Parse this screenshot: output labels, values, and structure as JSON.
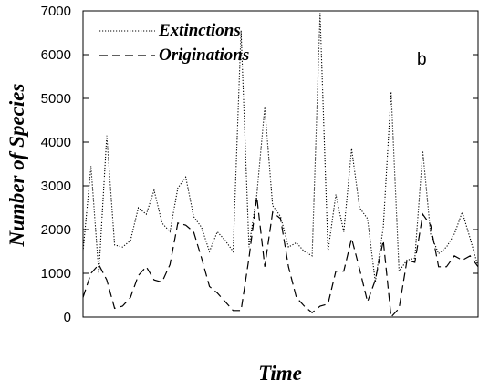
{
  "chart_data": {
    "type": "line",
    "panel_label": "b",
    "xlabel": "Time",
    "ylabel": "Number of Species",
    "ylim": [
      0,
      7000
    ],
    "yticks": [
      0,
      1000,
      2000,
      3000,
      4000,
      5000,
      6000,
      7000
    ],
    "xticks_labeled": false,
    "legend_position": "top-left",
    "series": [
      {
        "name": "Extinctions",
        "style": "dotted",
        "x": [
          0,
          1,
          2,
          3,
          4,
          5,
          6,
          7,
          8,
          9,
          10,
          11,
          12,
          13,
          14,
          15,
          16,
          17,
          18,
          19,
          20,
          21,
          22,
          23,
          24,
          25,
          26,
          27,
          28,
          29,
          30,
          31,
          32,
          33,
          34,
          35,
          36,
          37,
          38,
          39,
          40,
          41,
          42,
          43,
          44,
          45,
          46,
          47,
          48,
          49,
          50
        ],
        "values": [
          1500,
          3450,
          1000,
          4150,
          1650,
          1600,
          1750,
          2500,
          2350,
          2900,
          2150,
          1950,
          2950,
          3200,
          2300,
          2050,
          1500,
          1950,
          1750,
          1500,
          6550,
          1600,
          2800,
          4800,
          2550,
          2300,
          1600,
          1700,
          1500,
          1400,
          6950,
          1500,
          2800,
          1950,
          3850,
          2500,
          2250,
          800,
          2050,
          5150,
          1050,
          1300,
          1350,
          3800,
          1900,
          1450,
          1600,
          1900,
          2400,
          1800,
          1150
        ]
      },
      {
        "name": "Originations",
        "style": "dashed",
        "x": [
          0,
          1,
          2,
          3,
          4,
          5,
          6,
          7,
          8,
          9,
          10,
          11,
          12,
          13,
          14,
          15,
          16,
          17,
          18,
          19,
          20,
          21,
          22,
          23,
          24,
          25,
          26,
          27,
          28,
          29,
          30,
          31,
          32,
          33,
          34,
          35,
          36,
          37,
          38,
          39,
          40,
          41,
          42,
          43,
          44,
          45,
          46,
          47,
          48,
          49,
          50
        ],
        "values": [
          450,
          1000,
          1200,
          850,
          200,
          250,
          450,
          950,
          1150,
          850,
          800,
          1200,
          2150,
          2100,
          1950,
          1350,
          700,
          550,
          350,
          150,
          150,
          1350,
          2750,
          1150,
          2400,
          2250,
          1150,
          450,
          250,
          100,
          250,
          300,
          1050,
          1050,
          1800,
          1100,
          350,
          850,
          1750,
          0,
          200,
          1300,
          1250,
          2350,
          2100,
          1150,
          1150,
          1400,
          1300,
          1400,
          1150
        ]
      }
    ]
  }
}
